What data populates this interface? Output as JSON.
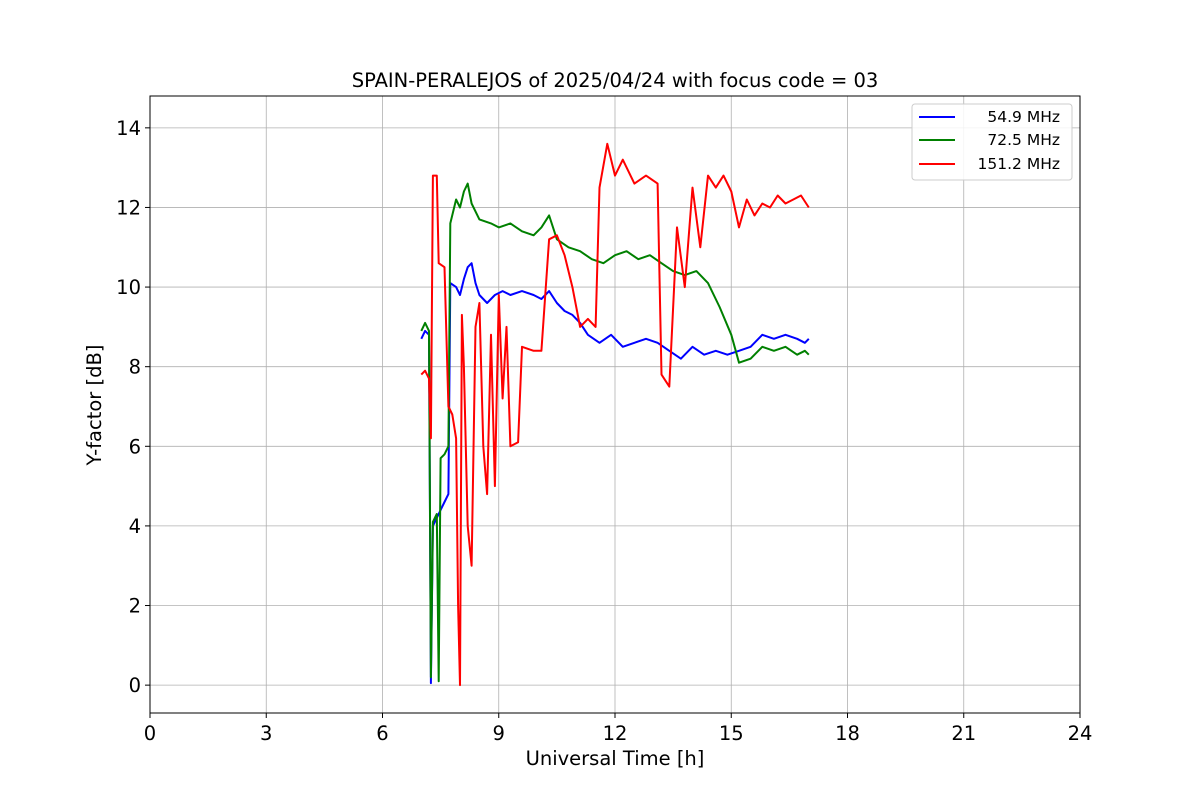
{
  "chart_data": {
    "type": "line",
    "title": "SPAIN-PERALEJOS of 2025/04/24 with focus code = 03",
    "xlabel": "Universal Time [h]",
    "ylabel": "Y-factor [dB]",
    "xlim": [
      0,
      24
    ],
    "ylim": [
      -0.7,
      14.8
    ],
    "xticks": [
      0,
      3,
      6,
      9,
      12,
      15,
      18,
      21,
      24
    ],
    "yticks": [
      0,
      2,
      4,
      6,
      8,
      10,
      12,
      14
    ],
    "grid": true,
    "legend_position": "top-right",
    "series": [
      {
        "name": "54.9 MHz",
        "color": "#0000ff",
        "points": [
          [
            7.0,
            8.7
          ],
          [
            7.1,
            8.9
          ],
          [
            7.2,
            8.8
          ],
          [
            7.25,
            0.05
          ],
          [
            7.3,
            4.0
          ],
          [
            7.4,
            4.2
          ],
          [
            7.5,
            4.4
          ],
          [
            7.6,
            4.6
          ],
          [
            7.7,
            4.8
          ],
          [
            7.75,
            10.1
          ],
          [
            7.9,
            10.0
          ],
          [
            8.0,
            9.8
          ],
          [
            8.1,
            10.2
          ],
          [
            8.2,
            10.5
          ],
          [
            8.3,
            10.6
          ],
          [
            8.4,
            10.1
          ],
          [
            8.5,
            9.8
          ],
          [
            8.7,
            9.6
          ],
          [
            8.9,
            9.8
          ],
          [
            9.1,
            9.9
          ],
          [
            9.3,
            9.8
          ],
          [
            9.6,
            9.9
          ],
          [
            9.9,
            9.8
          ],
          [
            10.1,
            9.7
          ],
          [
            10.3,
            9.9
          ],
          [
            10.5,
            9.6
          ],
          [
            10.7,
            9.4
          ],
          [
            10.9,
            9.3
          ],
          [
            11.1,
            9.1
          ],
          [
            11.3,
            8.8
          ],
          [
            11.6,
            8.6
          ],
          [
            11.9,
            8.8
          ],
          [
            12.2,
            8.5
          ],
          [
            12.5,
            8.6
          ],
          [
            12.8,
            8.7
          ],
          [
            13.1,
            8.6
          ],
          [
            13.4,
            8.4
          ],
          [
            13.7,
            8.2
          ],
          [
            14.0,
            8.5
          ],
          [
            14.3,
            8.3
          ],
          [
            14.6,
            8.4
          ],
          [
            14.9,
            8.3
          ],
          [
            15.2,
            8.4
          ],
          [
            15.5,
            8.5
          ],
          [
            15.8,
            8.8
          ],
          [
            16.1,
            8.7
          ],
          [
            16.4,
            8.8
          ],
          [
            16.7,
            8.7
          ],
          [
            16.9,
            8.6
          ],
          [
            17.0,
            8.7
          ]
        ]
      },
      {
        "name": "72.5 MHz",
        "color": "#008000",
        "points": [
          [
            7.0,
            8.9
          ],
          [
            7.1,
            9.1
          ],
          [
            7.2,
            8.9
          ],
          [
            7.25,
            0.2
          ],
          [
            7.3,
            4.1
          ],
          [
            7.4,
            4.3
          ],
          [
            7.45,
            0.1
          ],
          [
            7.5,
            5.7
          ],
          [
            7.6,
            5.8
          ],
          [
            7.7,
            6.0
          ],
          [
            7.75,
            11.6
          ],
          [
            7.9,
            12.2
          ],
          [
            8.0,
            12.0
          ],
          [
            8.1,
            12.4
          ],
          [
            8.2,
            12.6
          ],
          [
            8.3,
            12.1
          ],
          [
            8.5,
            11.7
          ],
          [
            8.8,
            11.6
          ],
          [
            9.0,
            11.5
          ],
          [
            9.3,
            11.6
          ],
          [
            9.6,
            11.4
          ],
          [
            9.9,
            11.3
          ],
          [
            10.1,
            11.5
          ],
          [
            10.3,
            11.8
          ],
          [
            10.5,
            11.2
          ],
          [
            10.8,
            11.0
          ],
          [
            11.1,
            10.9
          ],
          [
            11.4,
            10.7
          ],
          [
            11.7,
            10.6
          ],
          [
            12.0,
            10.8
          ],
          [
            12.3,
            10.9
          ],
          [
            12.6,
            10.7
          ],
          [
            12.9,
            10.8
          ],
          [
            13.2,
            10.6
          ],
          [
            13.5,
            10.4
          ],
          [
            13.8,
            10.3
          ],
          [
            14.1,
            10.4
          ],
          [
            14.4,
            10.1
          ],
          [
            14.7,
            9.5
          ],
          [
            15.0,
            8.8
          ],
          [
            15.2,
            8.1
          ],
          [
            15.5,
            8.2
          ],
          [
            15.8,
            8.5
          ],
          [
            16.1,
            8.4
          ],
          [
            16.4,
            8.5
          ],
          [
            16.7,
            8.3
          ],
          [
            16.9,
            8.4
          ],
          [
            17.0,
            8.3
          ]
        ]
      },
      {
        "name": "151.2 MHz",
        "color": "#ff0000",
        "points": [
          [
            7.0,
            7.8
          ],
          [
            7.1,
            7.9
          ],
          [
            7.2,
            7.7
          ],
          [
            7.25,
            6.2
          ],
          [
            7.3,
            12.8
          ],
          [
            7.4,
            12.8
          ],
          [
            7.45,
            10.6
          ],
          [
            7.6,
            10.5
          ],
          [
            7.7,
            7.0
          ],
          [
            7.8,
            6.8
          ],
          [
            7.9,
            6.2
          ],
          [
            7.95,
            2.0
          ],
          [
            8.0,
            0.0
          ],
          [
            8.05,
            9.3
          ],
          [
            8.1,
            8.0
          ],
          [
            8.2,
            4.0
          ],
          [
            8.3,
            3.0
          ],
          [
            8.4,
            9.0
          ],
          [
            8.5,
            9.6
          ],
          [
            8.6,
            6.0
          ],
          [
            8.7,
            4.8
          ],
          [
            8.8,
            8.8
          ],
          [
            8.9,
            5.0
          ],
          [
            9.0,
            9.8
          ],
          [
            9.1,
            7.2
          ],
          [
            9.2,
            9.0
          ],
          [
            9.3,
            6.0
          ],
          [
            9.5,
            6.1
          ],
          [
            9.6,
            8.5
          ],
          [
            9.9,
            8.4
          ],
          [
            10.1,
            8.4
          ],
          [
            10.3,
            11.2
          ],
          [
            10.5,
            11.3
          ],
          [
            10.7,
            10.8
          ],
          [
            10.9,
            10.0
          ],
          [
            11.1,
            9.0
          ],
          [
            11.3,
            9.2
          ],
          [
            11.5,
            9.0
          ],
          [
            11.6,
            12.5
          ],
          [
            11.8,
            13.6
          ],
          [
            12.0,
            12.8
          ],
          [
            12.2,
            13.2
          ],
          [
            12.5,
            12.6
          ],
          [
            12.8,
            12.8
          ],
          [
            13.1,
            12.6
          ],
          [
            13.2,
            7.8
          ],
          [
            13.4,
            7.5
          ],
          [
            13.6,
            11.5
          ],
          [
            13.8,
            10.0
          ],
          [
            14.0,
            12.5
          ],
          [
            14.2,
            11.0
          ],
          [
            14.4,
            12.8
          ],
          [
            14.6,
            12.5
          ],
          [
            14.8,
            12.8
          ],
          [
            15.0,
            12.4
          ],
          [
            15.2,
            11.5
          ],
          [
            15.4,
            12.2
          ],
          [
            15.6,
            11.8
          ],
          [
            15.8,
            12.1
          ],
          [
            16.0,
            12.0
          ],
          [
            16.2,
            12.3
          ],
          [
            16.4,
            12.1
          ],
          [
            16.6,
            12.2
          ],
          [
            16.8,
            12.3
          ],
          [
            17.0,
            12.0
          ]
        ]
      }
    ]
  }
}
